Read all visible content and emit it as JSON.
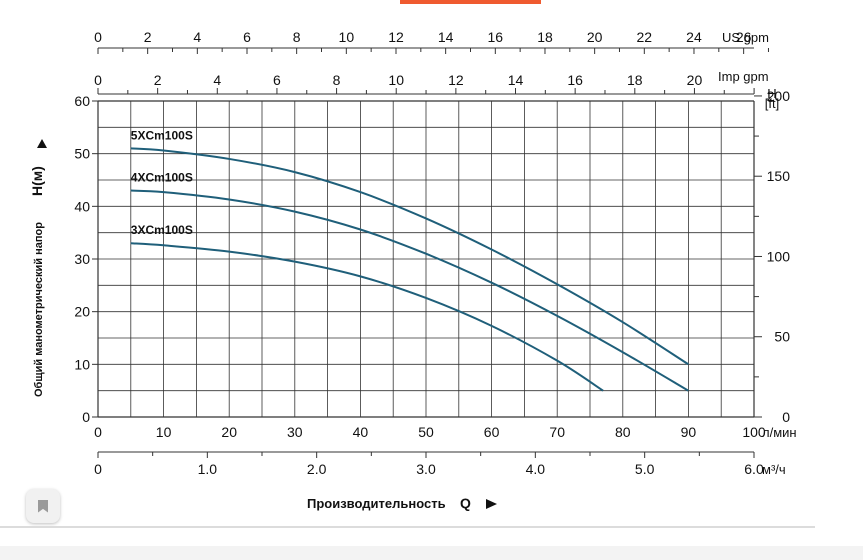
{
  "chart_data": {
    "type": "line",
    "title": "",
    "ylabel": "Общий манометрический напор",
    "ylabel_symbol": "H(м)",
    "xlabel": "Производительность",
    "xlabel_symbol": "Q",
    "right_axis_unit_top": "H",
    "right_axis_unit_bottom": "[ft]",
    "y_ticks": [
      "0",
      "10",
      "20",
      "30",
      "40",
      "50",
      "60"
    ],
    "ylim": [
      0,
      60
    ],
    "right_ticks": [
      "0",
      "50",
      "100",
      "150",
      "200"
    ],
    "x_lmin_ticks": [
      "0",
      "10",
      "20",
      "30",
      "40",
      "50",
      "60",
      "70",
      "80",
      "90",
      "100"
    ],
    "x_lmin_unit": "л/мин",
    "xlim": [
      0,
      100
    ],
    "x_m3h_ticks": [
      "0",
      "1.0",
      "2.0",
      "3.0",
      "4.0",
      "5.0",
      "6.0"
    ],
    "x_m3h_unit": "м³/ч",
    "us_gpm_ticks": [
      "0",
      "2",
      "4",
      "6",
      "8",
      "10",
      "12",
      "14",
      "16",
      "18",
      "20",
      "22",
      "24",
      "26"
    ],
    "us_gpm_unit": "US gpm",
    "imp_gpm_ticks": [
      "0",
      "2",
      "4",
      "6",
      "8",
      "10",
      "12",
      "14",
      "16",
      "18",
      "20"
    ],
    "imp_gpm_unit": "Imp gpm",
    "grid": true,
    "line_color": "#1f5f7a",
    "series": [
      {
        "name": "5XCm100S",
        "x": [
          5,
          10,
          20,
          30,
          40,
          50,
          60,
          70,
          80,
          90
        ],
        "y": [
          51,
          50.6,
          49,
          46.5,
          42.7,
          37.7,
          31.8,
          25.2,
          18,
          10
        ]
      },
      {
        "name": "4XCm100S",
        "x": [
          5,
          10,
          20,
          30,
          40,
          50,
          60,
          70,
          80,
          90
        ],
        "y": [
          43,
          42.7,
          41.3,
          39,
          35.6,
          31,
          25.5,
          19.2,
          12.3,
          5
        ]
      },
      {
        "name": "3XCm100S",
        "x": [
          5,
          10,
          20,
          30,
          40,
          50,
          60,
          70,
          77
        ],
        "y": [
          33,
          32.6,
          31.4,
          29.5,
          26.7,
          22.6,
          17.3,
          10.7,
          5
        ]
      }
    ]
  },
  "ui": {
    "accent_color": "#ef5a2f",
    "bookmark_icon": "bookmark-icon"
  }
}
